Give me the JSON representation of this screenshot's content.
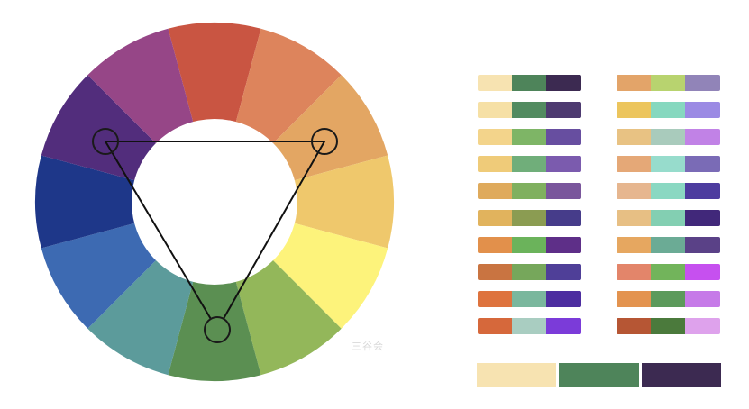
{
  "watermark": "三谷会",
  "wheel": {
    "colors": [
      "#c95542",
      "#dd845c",
      "#e3a663",
      "#efc86c",
      "#fdf37b",
      "#93b75a",
      "#5b8f52",
      "#5c9b9b",
      "#3d6ab2",
      "#1e3789",
      "#522d7c",
      "#964687"
    ],
    "triad_markers": [
      {
        "name": "marker-yellow-orange",
        "fill": "none"
      },
      {
        "name": "marker-green",
        "fill": "#5b8f52"
      },
      {
        "name": "marker-violet",
        "fill": "none"
      }
    ]
  },
  "palettes_left": [
    [
      "#f7e3b1",
      "#4e845a",
      "#3c2a51"
    ],
    [
      "#f6e0a5",
      "#528b60",
      "#4d3a70"
    ],
    [
      "#f3d48b",
      "#7eb566",
      "#674ea0"
    ],
    [
      "#efcb79",
      "#70ae7a",
      "#7b5bae"
    ],
    [
      "#dfaa5c",
      "#80b05f",
      "#7a569c"
    ],
    [
      "#e1b35d",
      "#8b9c52",
      "#463c8a"
    ],
    [
      "#e2904b",
      "#6bb35b",
      "#5e2f88"
    ],
    [
      "#c97441",
      "#76a75b",
      "#4f3f98"
    ],
    [
      "#de733e",
      "#7ab79d",
      "#4d2da0"
    ],
    [
      "#d6683b",
      "#a9cdc1",
      "#7b3bd9"
    ]
  ],
  "palettes_right": [
    [
      "#e3a469",
      "#b8d36f",
      "#9184b8"
    ],
    [
      "#ecc55d",
      "#86d8bf",
      "#9b8ae4"
    ],
    [
      "#e8c283",
      "#a9cbbc",
      "#c182e6"
    ],
    [
      "#e5a877",
      "#97dccc",
      "#7a6bb6"
    ],
    [
      "#e6b68f",
      "#8ad8c2",
      "#4d3c9f"
    ],
    [
      "#e7bf84",
      "#83cfb2",
      "#41287a"
    ],
    [
      "#e6a760",
      "#6bab95",
      "#5a4187"
    ],
    [
      "#e3856a",
      "#72b45b",
      "#c650ef"
    ],
    [
      "#e3934f",
      "#5c9a5b",
      "#c67ae8"
    ],
    [
      "#b65634",
      "#4b7a3c",
      "#dea2ec"
    ]
  ],
  "selected_palette": [
    "#f7e3b1",
    "#4e845a",
    "#3c2a51"
  ]
}
